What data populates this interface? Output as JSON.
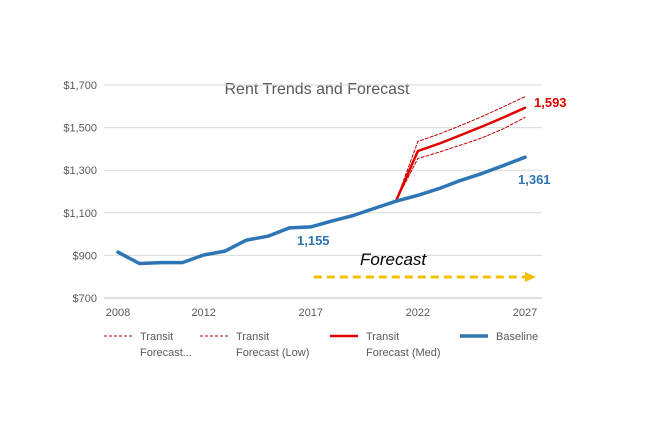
{
  "chart_data": {
    "type": "line",
    "title": "Rent Trends and Forecast",
    "xlabel": "",
    "ylabel": "",
    "xlim": [
      2008,
      2027
    ],
    "ylim": [
      700,
      1700
    ],
    "y_ticks": [
      700,
      900,
      1100,
      1300,
      1500,
      1700
    ],
    "y_tick_labels": [
      "$700",
      "$900",
      "$1,100",
      "$1,300",
      "$1,500",
      "$1,700"
    ],
    "x_ticks": [
      2008,
      2012,
      2017,
      2022,
      2027
    ],
    "x_tick_labels": [
      "2008",
      "2012",
      "2017",
      "2022",
      "2027"
    ],
    "grid": "horizontal",
    "legend_position": "bottom",
    "series": [
      {
        "name": "Transit Forecast...",
        "legend_label": [
          "Transit",
          "Forecast..."
        ],
        "color": "#c00000",
        "style": "dashed-thin",
        "x": [
          2021,
          2022,
          2023,
          2024,
          2025,
          2026,
          2027
        ],
        "values": [
          1161,
          1435,
          1470,
          1510,
          1552,
          1598,
          1645
        ]
      },
      {
        "name": "Transit Forecast (Low)",
        "legend_label": [
          "Transit",
          "Forecast (Low)"
        ],
        "color": "#c00000",
        "style": "dashed-thin",
        "x": [
          2021,
          2022,
          2023,
          2024,
          2025,
          2026,
          2027
        ],
        "values": [
          1161,
          1355,
          1385,
          1418,
          1452,
          1495,
          1548
        ]
      },
      {
        "name": "Transit Forecast (Med)",
        "legend_label": [
          "Transit",
          "Forecast (Med)"
        ],
        "color": "#e00000",
        "style": "solid",
        "x": [
          2021,
          2022,
          2023,
          2024,
          2025,
          2026,
          2027
        ],
        "values": [
          1161,
          1390,
          1425,
          1465,
          1505,
          1548,
          1593
        ]
      },
      {
        "name": "Baseline",
        "legend_label": [
          "Baseline"
        ],
        "color": "#2e75b6",
        "style": "solid-thick",
        "x": [
          2008,
          2009,
          2010,
          2011,
          2012,
          2013,
          2014,
          2015,
          2016,
          2017,
          2018,
          2019,
          2020,
          2021,
          2022,
          2023,
          2024,
          2025,
          2026,
          2027
        ],
        "values": [
          915,
          862,
          866,
          866,
          902,
          920,
          972,
          990,
          1029,
          1034,
          1062,
          1088,
          1122,
          1155,
          1182,
          1214,
          1252,
          1285,
          1322,
          1361
        ]
      }
    ],
    "data_labels": [
      {
        "text": "1,593",
        "color": "#e00000"
      },
      {
        "text": "1,361",
        "color": "#2e75b6"
      },
      {
        "text": "1,155",
        "color": "#2e75b6"
      }
    ],
    "annotation": {
      "text": "Forecast",
      "arrow_from": 2017,
      "arrow_to": 2027,
      "arrow_color": "#f2c000"
    }
  }
}
